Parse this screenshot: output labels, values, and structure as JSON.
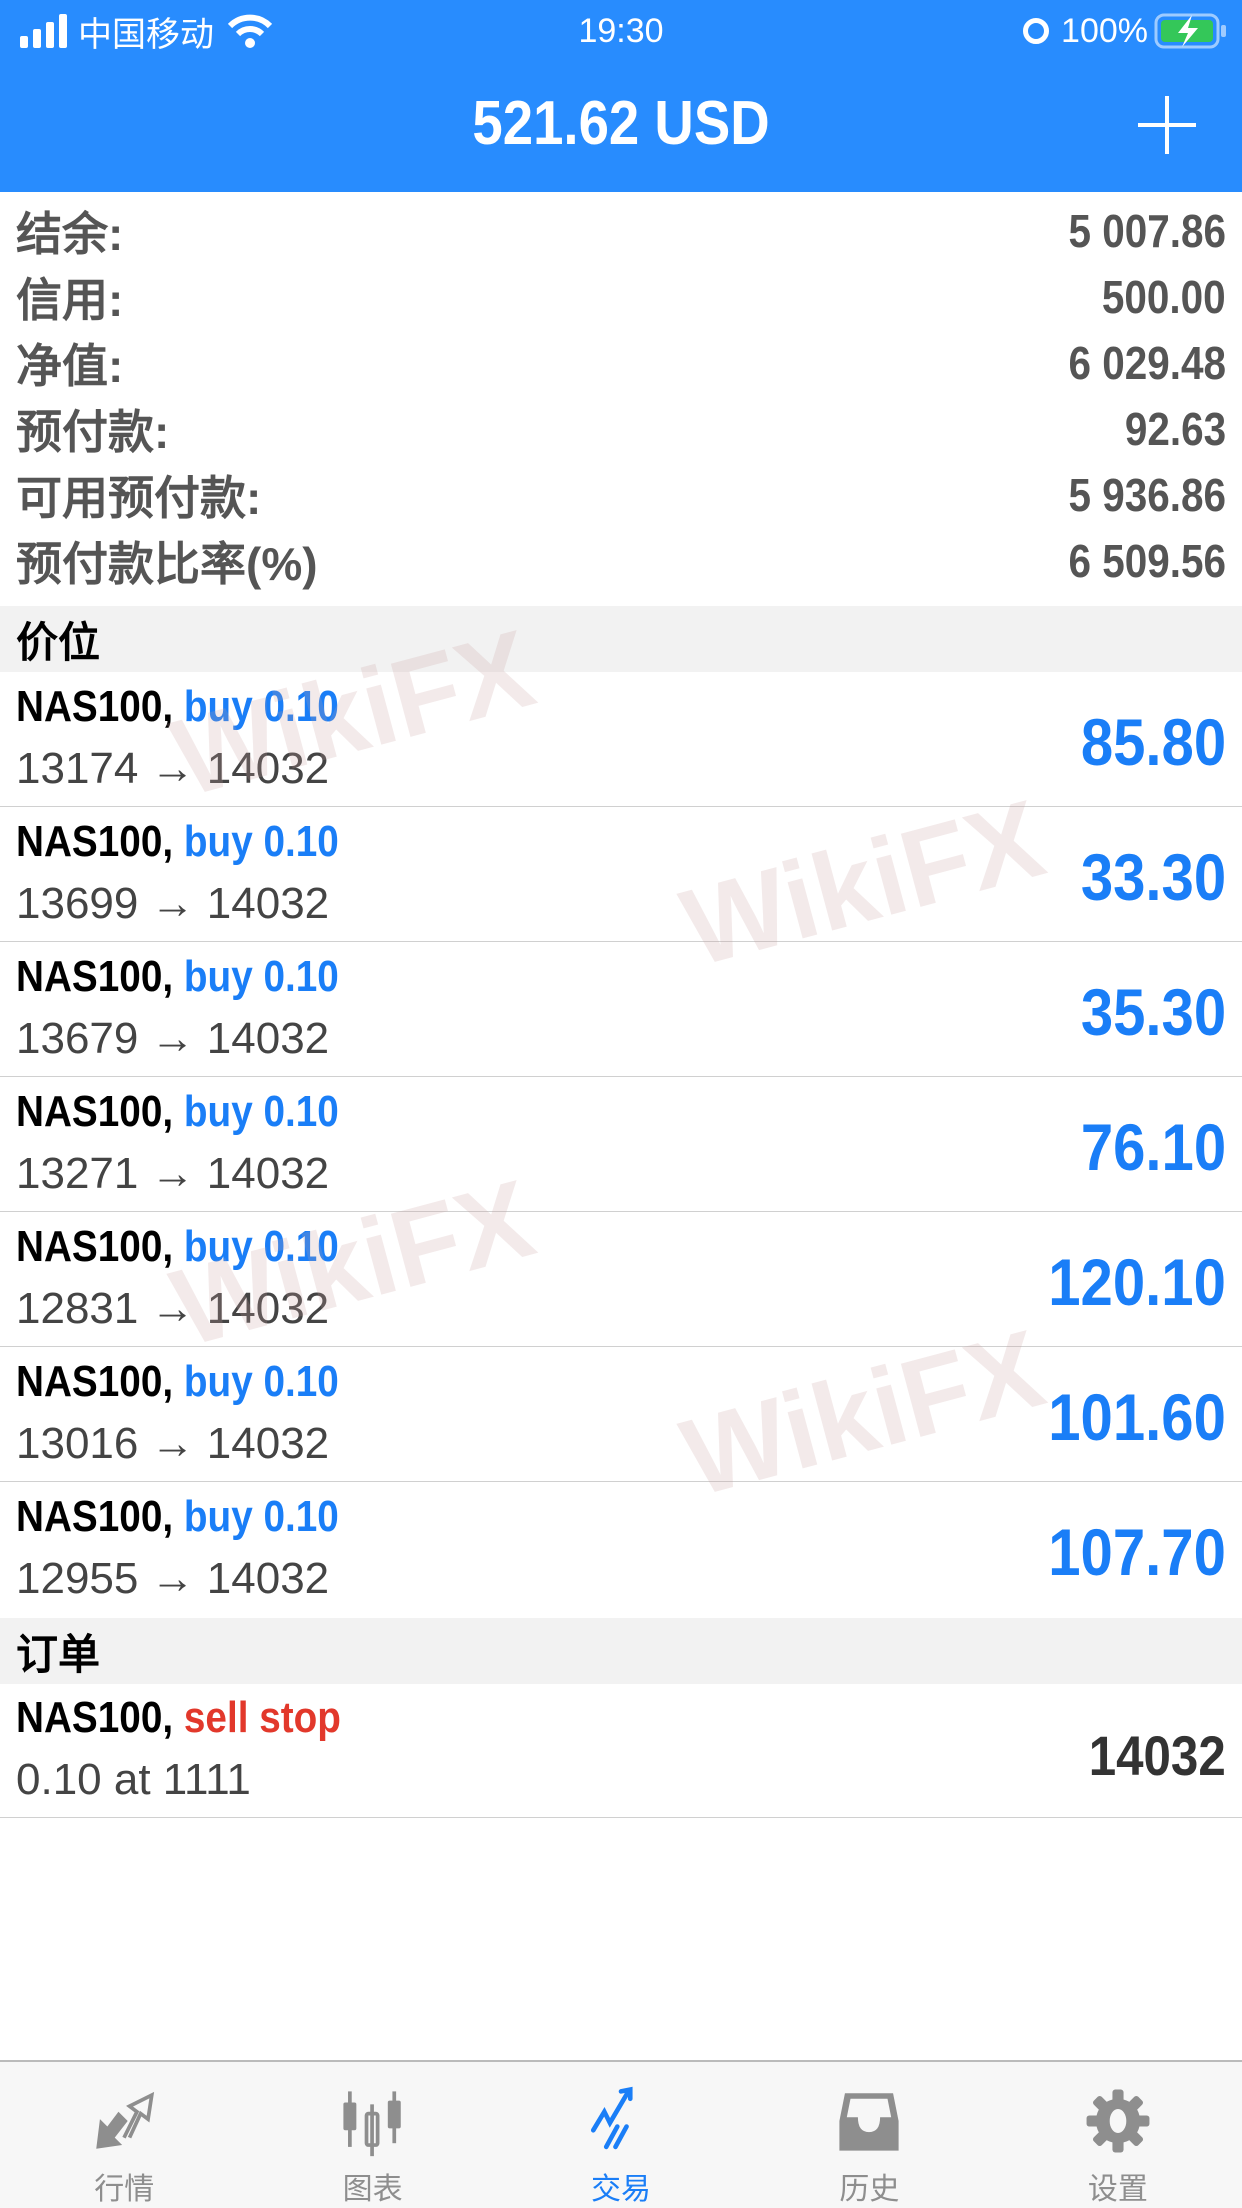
{
  "status_bar": {
    "carrier": "中国移动",
    "time": "19:30",
    "battery": "100%"
  },
  "header": {
    "title": "521.62 USD",
    "add_icon": "plus-icon"
  },
  "summary": [
    {
      "label": "结余:",
      "value": "5 007.86"
    },
    {
      "label": "信用:",
      "value": "500.00"
    },
    {
      "label": "净值:",
      "value": "6 029.48"
    },
    {
      "label": "预付款:",
      "value": "92.63"
    },
    {
      "label": "可用预付款:",
      "value": "5 936.86"
    },
    {
      "label": "预付款比率(%)",
      "value": "6 509.56"
    }
  ],
  "positions_header": "价位",
  "positions": [
    {
      "symbol": "NAS100,",
      "type": "buy 0.10",
      "prices": "13174 → 14032",
      "profit": "85.80"
    },
    {
      "symbol": "NAS100,",
      "type": "buy 0.10",
      "prices": "13699 → 14032",
      "profit": "33.30"
    },
    {
      "symbol": "NAS100,",
      "type": "buy 0.10",
      "prices": "13679 → 14032",
      "profit": "35.30"
    },
    {
      "symbol": "NAS100,",
      "type": "buy 0.10",
      "prices": "13271 → 14032",
      "profit": "76.10"
    },
    {
      "symbol": "NAS100,",
      "type": "buy 0.10",
      "prices": "12831 → 14032",
      "profit": "120.10"
    },
    {
      "symbol": "NAS100,",
      "type": "buy 0.10",
      "prices": "13016 → 14032",
      "profit": "101.60"
    },
    {
      "symbol": "NAS100,",
      "type": "buy 0.10",
      "prices": "12955 → 14032",
      "profit": "107.70"
    }
  ],
  "orders_header": "订单",
  "orders": [
    {
      "symbol": "NAS100,",
      "type": "sell stop",
      "detail": "0.10 at 1111",
      "price": "14032"
    }
  ],
  "watermark": "WikiFX",
  "tabs": [
    {
      "label": "行情",
      "icon": "quotes-arrows-icon"
    },
    {
      "label": "图表",
      "icon": "candlestick-chart-icon"
    },
    {
      "label": "交易",
      "icon": "trade-trend-icon",
      "active": true
    },
    {
      "label": "历史",
      "icon": "history-inbox-icon"
    },
    {
      "label": "设置",
      "icon": "gear-icon"
    }
  ],
  "colors": {
    "header": "#288cfe",
    "accent": "#1a7ef7",
    "sell": "#e2382b"
  }
}
